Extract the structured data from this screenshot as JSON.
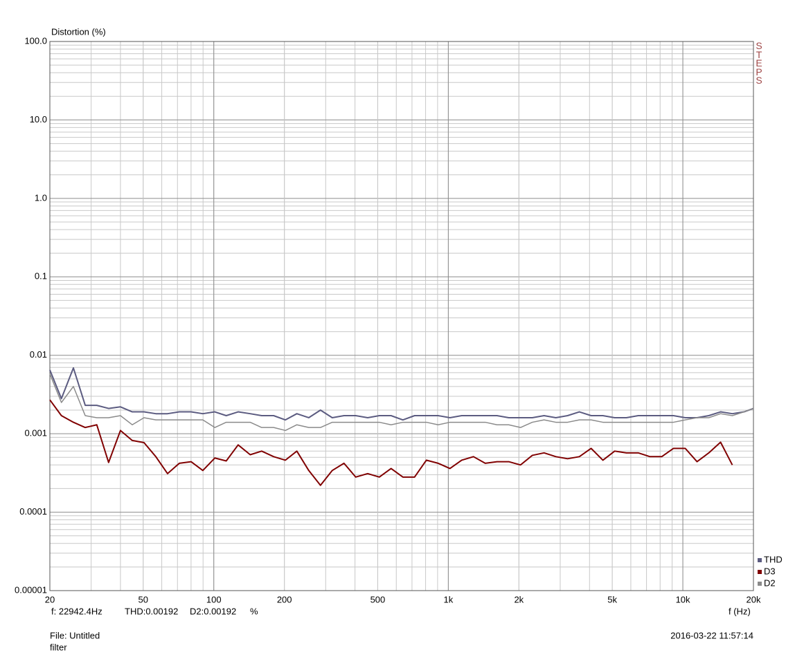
{
  "chart_data": {
    "type": "line",
    "ylabel": "Distortion (%)",
    "xlabel": "f (Hz)",
    "side_label": "STEPS",
    "xscale": "log",
    "yscale": "log",
    "grid": true,
    "legend": "lower right",
    "xlim": [
      20,
      20000
    ],
    "ylim": [
      1e-05,
      100
    ],
    "xticks": [
      20,
      50,
      100,
      200,
      500,
      {
        "value": 1000,
        "label": "1k"
      },
      {
        "value": 2000,
        "label": "2k"
      },
      {
        "value": 5000,
        "label": "5k"
      },
      {
        "value": 10000,
        "label": "10k"
      },
      {
        "value": 20000,
        "label": "20k"
      }
    ],
    "yticks": [
      {
        "value": 100,
        "label": "100.0"
      },
      {
        "value": 10,
        "label": "10.0"
      },
      {
        "value": 1,
        "label": "1.0"
      },
      0.1,
      0.01,
      0.001,
      0.0001,
      1e-05
    ],
    "x": [
      20,
      22.4,
      25.2,
      28.3,
      31.7,
      35.6,
      40,
      44.9,
      50.4,
      56.6,
      63.5,
      71.3,
      80,
      89.8,
      101,
      113,
      127,
      143,
      160,
      180,
      202,
      226,
      254,
      285,
      320,
      359,
      403,
      453,
      508,
      570,
      640,
      718,
      806,
      905,
      1016,
      1140,
      1280,
      1437,
      1613,
      1810,
      2032,
      2281,
      2560,
      2874,
      3225,
      3620,
      4064,
      4561,
      5120,
      5747,
      6451,
      7241,
      8127,
      9123,
      10240,
      11494,
      12902,
      14482,
      16255,
      18245,
      20000
    ],
    "series": [
      {
        "name": "THD",
        "color": "#5b5b80",
        "values": [
          0.0065,
          0.0028,
          0.0069,
          0.0023,
          0.0023,
          0.0021,
          0.0022,
          0.0019,
          0.0019,
          0.0018,
          0.0018,
          0.0019,
          0.0019,
          0.0018,
          0.0019,
          0.0017,
          0.0019,
          0.0018,
          0.0017,
          0.0017,
          0.0015,
          0.0018,
          0.0016,
          0.002,
          0.0016,
          0.0017,
          0.0017,
          0.0016,
          0.0017,
          0.0017,
          0.0015,
          0.0017,
          0.0017,
          0.0017,
          0.0016,
          0.0017,
          0.0017,
          0.0017,
          0.0017,
          0.0016,
          0.0016,
          0.0016,
          0.0017,
          0.0016,
          0.0017,
          0.0019,
          0.0017,
          0.0017,
          0.0016,
          0.0016,
          0.0017,
          0.0017,
          0.0017,
          0.0017,
          0.0016,
          0.0016,
          0.0017,
          0.0019,
          0.0018,
          0.0019,
          0.0021
        ]
      },
      {
        "name": "D3",
        "color": "#800000",
        "values": [
          0.0027,
          0.0017,
          0.0014,
          0.0012,
          0.0013,
          0.00043,
          0.0011,
          0.00082,
          0.00077,
          0.00051,
          0.00031,
          0.00042,
          0.00044,
          0.00034,
          0.00049,
          0.00045,
          0.00072,
          0.00054,
          0.0006,
          0.00051,
          0.00046,
          0.0006,
          0.00034,
          0.00022,
          0.00034,
          0.00042,
          0.00028,
          0.00031,
          0.00028,
          0.00036,
          0.00028,
          0.00028,
          0.00046,
          0.00042,
          0.00036,
          0.00046,
          0.00051,
          0.00042,
          0.00044,
          0.00044,
          0.0004,
          0.00053,
          0.00057,
          0.00051,
          0.00048,
          0.00051,
          0.00065,
          0.00046,
          0.0006,
          0.00057,
          0.00057,
          0.00051,
          0.00051,
          0.00065,
          0.00065,
          0.00044,
          0.00057,
          0.00078,
          0.0004,
          null,
          null
        ]
      },
      {
        "name": "D2",
        "color": "#8a8a8a",
        "values": [
          0.0058,
          0.0025,
          0.004,
          0.0017,
          0.0016,
          0.0016,
          0.0017,
          0.0013,
          0.0016,
          0.0015,
          0.0015,
          0.0015,
          0.0015,
          0.0015,
          0.0012,
          0.0014,
          0.0014,
          0.0014,
          0.0012,
          0.0012,
          0.0011,
          0.0013,
          0.0012,
          0.0012,
          0.0014,
          0.0014,
          0.0014,
          0.0014,
          0.0014,
          0.0013,
          0.0014,
          0.0014,
          0.0014,
          0.0013,
          0.0014,
          0.0014,
          0.0014,
          0.0014,
          0.0013,
          0.0013,
          0.0012,
          0.0014,
          0.0015,
          0.0014,
          0.0014,
          0.0015,
          0.0015,
          0.0014,
          0.0014,
          0.0014,
          0.0014,
          0.0014,
          0.0014,
          0.0014,
          0.0015,
          0.0016,
          0.0016,
          0.0018,
          0.0017,
          0.0019,
          0.0021
        ]
      }
    ],
    "readout": {
      "f": "f: 22942.4Hz",
      "thd": "THD:0.00192",
      "d2": "D2:0.00192",
      "unit": "%"
    },
    "file": "File: Untitled",
    "filter": "filter",
    "timestamp": "2016-03-22 11:57:14"
  }
}
